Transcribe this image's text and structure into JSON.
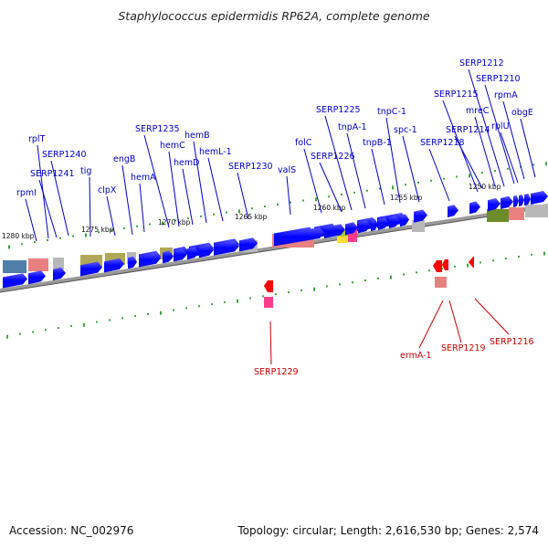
{
  "title": "Staphylococcus epidermidis RP62A, complete genome",
  "footer": {
    "accession": "Accession: NC_002976",
    "topology": "Topology: circular; Length: 2,616,530 bp; Genes: 2,574"
  },
  "ruler": {
    "unit": "kbp",
    "ticks": [
      {
        "kbp": 1280,
        "label": "1280 kbp"
      },
      {
        "kbp": 1275,
        "label": "1275 kbp"
      },
      {
        "kbp": 1270,
        "label": "1270 kbp"
      },
      {
        "kbp": 1265,
        "label": "1265 kbp"
      },
      {
        "kbp": 1260,
        "label": "1260 kbp"
      },
      {
        "kbp": 1255,
        "label": "1255 kbp"
      },
      {
        "kbp": 1250,
        "label": "1250 kbp"
      }
    ]
  },
  "colors": {
    "plus_gene": "#0000ff",
    "minus_gene": "#ff0000",
    "plus_label": "#0000cc",
    "minus_label": "#cc0000",
    "tick": "#008800",
    "backbone": "#888888",
    "cog_blue_gray": "#4f7ea8",
    "cog_salmon": "#e98080",
    "cog_olive": "#b0a858",
    "cog_gray": "#b8b8b8",
    "cog_pink": "#ff3c8c",
    "cog_green": "#6c8c2a",
    "cog_yellow_green": "#a8c838"
  },
  "gene_labels_top": [
    {
      "name": "rpmI"
    },
    {
      "name": "rplT"
    },
    {
      "name": "SERP1241"
    },
    {
      "name": "SERP1240"
    },
    {
      "name": "tig"
    },
    {
      "name": "clpX"
    },
    {
      "name": "engB"
    },
    {
      "name": "hemA"
    },
    {
      "name": "SERP1235"
    },
    {
      "name": "hemC"
    },
    {
      "name": "hemD"
    },
    {
      "name": "hemB"
    },
    {
      "name": "hemL-1"
    },
    {
      "name": "SERP1230"
    },
    {
      "name": "valS"
    },
    {
      "name": "folC"
    },
    {
      "name": "SERP1226"
    },
    {
      "name": "SERP1225"
    },
    {
      "name": "tnpA-1"
    },
    {
      "name": "tnpB-1"
    },
    {
      "name": "tnpC-1"
    },
    {
      "name": "spc-1"
    },
    {
      "name": "SERP1218"
    },
    {
      "name": "SERP1215"
    },
    {
      "name": "SERP1214"
    },
    {
      "name": "mreC"
    },
    {
      "name": "SERP1212"
    },
    {
      "name": "SERP1210"
    },
    {
      "name": "rplU"
    },
    {
      "name": "rpmA"
    },
    {
      "name": "obgE"
    }
  ],
  "gene_labels_bottom": [
    {
      "name": "SERP1229"
    },
    {
      "name": "ermA-1"
    },
    {
      "name": "SERP1219"
    },
    {
      "name": "SERP1216"
    }
  ]
}
